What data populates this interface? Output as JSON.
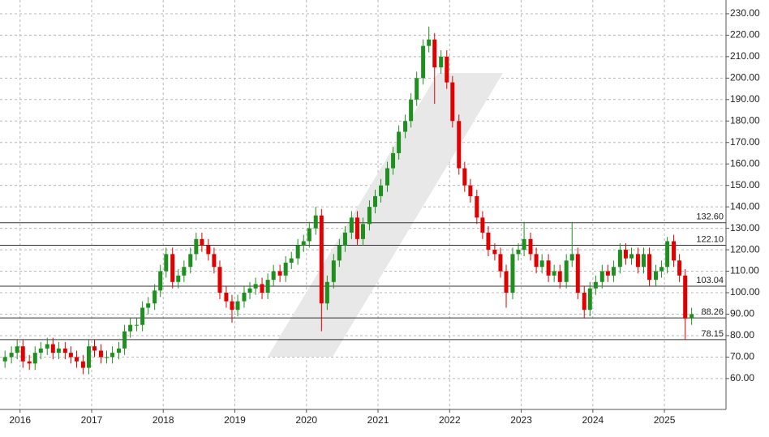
{
  "chart_data": {
    "type": "candlestick",
    "xlim": [
      2015.72,
      2025.86
    ],
    "ylim": [
      45.6,
      236.4
    ],
    "xticks": [
      2016,
      2017,
      2018,
      2019,
      2020,
      2021,
      2022,
      2023,
      2024,
      2025
    ],
    "yticks": [
      {
        "value": 60,
        "label": "60.00"
      },
      {
        "value": 70,
        "label": "70.00"
      },
      {
        "value": 80,
        "label": "80.00"
      },
      {
        "value": 90,
        "label": "90.00"
      },
      {
        "value": 100,
        "label": "100.00"
      },
      {
        "value": 110,
        "label": "110.00"
      },
      {
        "value": 120,
        "label": "120.00"
      },
      {
        "value": 130,
        "label": "130.00"
      },
      {
        "value": 140,
        "label": "140.00"
      },
      {
        "value": 150,
        "label": "150.00"
      },
      {
        "value": 160,
        "label": "160.00"
      },
      {
        "value": 170,
        "label": "170.00"
      },
      {
        "value": 180,
        "label": "180.00"
      },
      {
        "value": 190,
        "label": "190.00"
      },
      {
        "value": 200,
        "label": "200.00"
      },
      {
        "value": 210,
        "label": "210.00"
      },
      {
        "value": 220,
        "label": "220.00"
      },
      {
        "value": 230,
        "label": "230.00"
      }
    ],
    "grid": true,
    "up_color": "#1f8f1f",
    "down_color": "#e00000",
    "reference_lines": [
      {
        "value": 132.6,
        "label": "132.60"
      },
      {
        "value": 122.1,
        "label": "122.10"
      },
      {
        "value": 103.04,
        "label": "103.04"
      },
      {
        "value": 88.26,
        "label": "88.26"
      },
      {
        "value": 78.15,
        "label": "78.15"
      }
    ],
    "x": [
      2015.79,
      2015.88,
      2015.96,
      2016.04,
      2016.13,
      2016.21,
      2016.29,
      2016.38,
      2016.46,
      2016.54,
      2016.63,
      2016.71,
      2016.79,
      2016.88,
      2016.96,
      2017.04,
      2017.13,
      2017.21,
      2017.29,
      2017.38,
      2017.46,
      2017.54,
      2017.63,
      2017.71,
      2017.79,
      2017.88,
      2017.96,
      2018.04,
      2018.13,
      2018.21,
      2018.29,
      2018.38,
      2018.46,
      2018.54,
      2018.63,
      2018.71,
      2018.79,
      2018.88,
      2018.96,
      2019.04,
      2019.13,
      2019.21,
      2019.29,
      2019.38,
      2019.46,
      2019.54,
      2019.63,
      2019.71,
      2019.79,
      2019.88,
      2019.96,
      2020.04,
      2020.13,
      2020.21,
      2020.29,
      2020.38,
      2020.46,
      2020.54,
      2020.63,
      2020.71,
      2020.79,
      2020.88,
      2020.96,
      2021.04,
      2021.13,
      2021.21,
      2021.29,
      2021.38,
      2021.46,
      2021.54,
      2021.63,
      2021.71,
      2021.79,
      2021.88,
      2021.96,
      2022.04,
      2022.13,
      2022.21,
      2022.29,
      2022.38,
      2022.46,
      2022.54,
      2022.63,
      2022.71,
      2022.79,
      2022.88,
      2022.96,
      2023.04,
      2023.13,
      2023.21,
      2023.29,
      2023.38,
      2023.46,
      2023.54,
      2023.63,
      2023.71,
      2023.79,
      2023.88,
      2023.96,
      2024.04,
      2024.13,
      2024.21,
      2024.29,
      2024.38,
      2024.46,
      2024.54,
      2024.63,
      2024.71,
      2024.79,
      2024.88,
      2024.96,
      2025.04,
      2025.13,
      2025.21,
      2025.29,
      2025.38
    ],
    "open": [
      68,
      70,
      72,
      75,
      68,
      67,
      72,
      74,
      76,
      72,
      74,
      72,
      70,
      68,
      65,
      75,
      73,
      70,
      70,
      72,
      74,
      82,
      85,
      85,
      93,
      95,
      101,
      110,
      118,
      105,
      108,
      112,
      118,
      125,
      122,
      118,
      112,
      100,
      96,
      92,
      96,
      100,
      102,
      104,
      100,
      106,
      110,
      108,
      114,
      116,
      122,
      124,
      130,
      136,
      95,
      105,
      115,
      122,
      128,
      135,
      125,
      132,
      140,
      145,
      150,
      158,
      165,
      175,
      180,
      190,
      200,
      215,
      218,
      205,
      210,
      198,
      180,
      158,
      150,
      145,
      135,
      128,
      120,
      118,
      110,
      100,
      118,
      120,
      125,
      118,
      112,
      115,
      108,
      110,
      105,
      115,
      118,
      100,
      92,
      102,
      105,
      110,
      108,
      112,
      120,
      116,
      118,
      112,
      118,
      106,
      110,
      112,
      124,
      115,
      108,
      88
    ],
    "high": [
      73,
      75,
      78,
      78,
      71,
      75,
      77,
      79,
      79,
      77,
      77,
      75,
      73,
      71,
      78,
      78,
      76,
      73,
      75,
      77,
      85,
      88,
      88,
      96,
      98,
      104,
      113,
      121,
      121,
      111,
      115,
      121,
      128,
      128,
      125,
      121,
      115,
      103,
      99,
      99,
      103,
      105,
      107,
      107,
      109,
      113,
      113,
      117,
      119,
      125,
      127,
      133,
      140,
      139,
      108,
      118,
      125,
      131,
      138,
      138,
      135,
      143,
      148,
      153,
      161,
      168,
      178,
      183,
      193,
      203,
      218,
      224,
      221,
      213,
      213,
      201,
      183,
      161,
      153,
      148,
      138,
      131,
      123,
      121,
      113,
      121,
      123,
      133,
      128,
      121,
      118,
      118,
      113,
      113,
      118,
      133,
      121,
      103,
      105,
      108,
      113,
      113,
      115,
      123,
      123,
      121,
      121,
      121,
      121,
      113,
      115,
      126,
      127,
      118,
      111,
      93
    ],
    "low": [
      65,
      67,
      69,
      65,
      64,
      64,
      69,
      71,
      69,
      69,
      69,
      67,
      65,
      62,
      62,
      70,
      67,
      67,
      67,
      69,
      71,
      79,
      82,
      82,
      90,
      92,
      98,
      107,
      102,
      102,
      105,
      109,
      115,
      119,
      115,
      109,
      97,
      93,
      86,
      89,
      93,
      97,
      99,
      97,
      97,
      103,
      105,
      105,
      111,
      113,
      119,
      121,
      127,
      82,
      92,
      102,
      112,
      119,
      125,
      122,
      122,
      129,
      137,
      142,
      147,
      155,
      162,
      172,
      177,
      187,
      197,
      212,
      188,
      202,
      195,
      177,
      155,
      147,
      142,
      132,
      125,
      117,
      115,
      107,
      93,
      97,
      115,
      117,
      115,
      109,
      109,
      105,
      105,
      102,
      102,
      112,
      97,
      88,
      89,
      99,
      102,
      105,
      105,
      109,
      113,
      113,
      109,
      109,
      103,
      103,
      107,
      109,
      112,
      105,
      78,
      85
    ],
    "close": [
      70,
      72,
      75,
      68,
      67,
      72,
      74,
      76,
      72,
      74,
      72,
      70,
      68,
      65,
      75,
      73,
      70,
      70,
      72,
      74,
      82,
      85,
      85,
      93,
      95,
      101,
      110,
      118,
      105,
      108,
      112,
      118,
      125,
      122,
      118,
      112,
      100,
      96,
      92,
      96,
      100,
      102,
      104,
      100,
      106,
      110,
      108,
      114,
      116,
      122,
      124,
      130,
      136,
      95,
      105,
      115,
      122,
      128,
      135,
      125,
      132,
      140,
      145,
      150,
      158,
      165,
      175,
      180,
      190,
      200,
      215,
      218,
      205,
      210,
      198,
      180,
      158,
      150,
      145,
      135,
      128,
      120,
      118,
      110,
      100,
      118,
      120,
      125,
      118,
      112,
      115,
      108,
      110,
      105,
      115,
      118,
      100,
      92,
      102,
      105,
      110,
      108,
      112,
      120,
      116,
      118,
      112,
      118,
      106,
      110,
      112,
      124,
      115,
      108,
      88,
      90
    ]
  }
}
